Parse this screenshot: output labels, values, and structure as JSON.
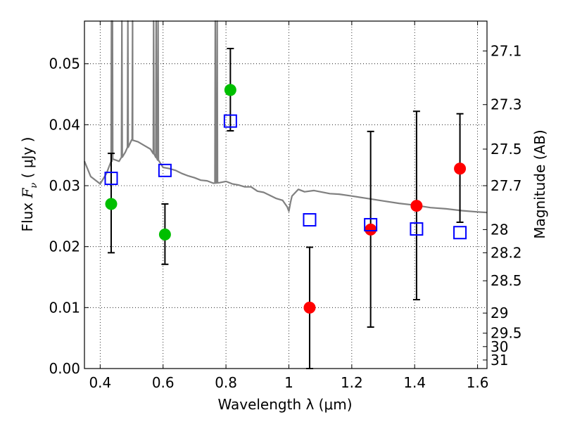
{
  "chart_data": {
    "type": "scatter",
    "xlabel": "Wavelength  λ (μm)",
    "ylabel_parts": [
      "Flux  ",
      "F",
      "ν",
      "  (  μJy  )"
    ],
    "y2label": "Magnitude (AB)",
    "xlim": [
      0.35,
      1.63
    ],
    "ylim": [
      0.0,
      0.057
    ],
    "grid": true,
    "x_ticks": [
      0.4,
      0.6,
      0.8,
      1.0,
      1.2,
      1.4,
      1.6
    ],
    "x_tick_labels": [
      "0.4",
      "0.6",
      "0.8",
      "1",
      "1.2",
      "1.4",
      "1.6"
    ],
    "y_ticks": [
      0.0,
      0.01,
      0.02,
      0.03,
      0.04,
      0.05
    ],
    "y_tick_labels": [
      "0.00",
      "0.01",
      "0.02",
      "0.03",
      "0.04",
      "0.05"
    ],
    "y2_ticks": [
      {
        "label": "27.1",
        "flux": 0.0521
      },
      {
        "label": "27.3",
        "flux": 0.0433
      },
      {
        "label": "27.5",
        "flux": 0.036
      },
      {
        "label": "27.7",
        "flux": 0.03
      },
      {
        "label": "28",
        "flux": 0.0228
      },
      {
        "label": "28.2",
        "flux": 0.019
      },
      {
        "label": "28.5",
        "flux": 0.0144
      },
      {
        "label": "29",
        "flux": 0.0091
      },
      {
        "label": "29.5",
        "flux": 0.0058
      },
      {
        "label": "30",
        "flux": 0.0036
      },
      {
        "label": "31",
        "flux": 0.0014
      }
    ],
    "series": [
      {
        "marker": "circle",
        "color": "#00bf00",
        "points": [
          {
            "x": 0.435,
            "y": 0.027,
            "ylo": 0.019,
            "yhi": 0.0353
          },
          {
            "x": 0.606,
            "y": 0.022,
            "ylo": 0.0171,
            "yhi": 0.027
          },
          {
            "x": 0.814,
            "y": 0.0457,
            "ylo": 0.039,
            "yhi": 0.0525
          }
        ]
      },
      {
        "marker": "circle",
        "color": "#ff0000",
        "points": [
          {
            "x": 1.066,
            "y": 0.01,
            "ylo": 0.0,
            "yhi": 0.0199
          },
          {
            "x": 1.26,
            "y": 0.0228,
            "ylo": 0.0068,
            "yhi": 0.0389
          },
          {
            "x": 1.406,
            "y": 0.0267,
            "ylo": 0.0113,
            "yhi": 0.0422
          },
          {
            "x": 1.544,
            "y": 0.0328,
            "ylo": 0.024,
            "yhi": 0.0418
          }
        ]
      },
      {
        "marker": "open-square",
        "color": "#0000ff",
        "points": [
          {
            "x": 0.435,
            "y": 0.0312
          },
          {
            "x": 0.606,
            "y": 0.0325
          },
          {
            "x": 0.814,
            "y": 0.0406
          },
          {
            "x": 1.066,
            "y": 0.0244
          },
          {
            "x": 1.26,
            "y": 0.0236
          },
          {
            "x": 1.406,
            "y": 0.0229
          },
          {
            "x": 1.544,
            "y": 0.0223
          }
        ]
      }
    ],
    "model_spectrum": {
      "color": "#808080",
      "continuum": [
        [
          0.35,
          0.034
        ],
        [
          0.37,
          0.0315
        ],
        [
          0.4,
          0.0303
        ],
        [
          0.42,
          0.032
        ],
        [
          0.44,
          0.0345
        ],
        [
          0.46,
          0.034
        ],
        [
          0.48,
          0.0355
        ],
        [
          0.5,
          0.0375
        ],
        [
          0.52,
          0.0372
        ],
        [
          0.54,
          0.0366
        ],
        [
          0.56,
          0.036
        ],
        [
          0.58,
          0.0345
        ],
        [
          0.6,
          0.033
        ],
        [
          0.62,
          0.0328
        ],
        [
          0.64,
          0.0325
        ],
        [
          0.66,
          0.032
        ],
        [
          0.68,
          0.0316
        ],
        [
          0.7,
          0.0313
        ],
        [
          0.72,
          0.0309
        ],
        [
          0.74,
          0.0308
        ],
        [
          0.76,
          0.0304
        ],
        [
          0.78,
          0.0305
        ],
        [
          0.8,
          0.0307
        ],
        [
          0.82,
          0.0303
        ],
        [
          0.84,
          0.0301
        ],
        [
          0.86,
          0.0298
        ],
        [
          0.88,
          0.0298
        ],
        [
          0.9,
          0.0291
        ],
        [
          0.92,
          0.0289
        ],
        [
          0.94,
          0.0284
        ],
        [
          0.96,
          0.0279
        ],
        [
          0.98,
          0.0276
        ],
        [
          0.995,
          0.0265
        ],
        [
          1.0,
          0.0258
        ],
        [
          1.005,
          0.0272
        ],
        [
          1.01,
          0.0283
        ],
        [
          1.03,
          0.0294
        ],
        [
          1.05,
          0.029
        ],
        [
          1.08,
          0.0292
        ],
        [
          1.1,
          0.029
        ],
        [
          1.13,
          0.0287
        ],
        [
          1.16,
          0.0286
        ],
        [
          1.2,
          0.0283
        ],
        [
          1.25,
          0.0279
        ],
        [
          1.3,
          0.0275
        ],
        [
          1.35,
          0.0271
        ],
        [
          1.4,
          0.0268
        ],
        [
          1.45,
          0.0264
        ],
        [
          1.5,
          0.0262
        ],
        [
          1.55,
          0.0259
        ],
        [
          1.6,
          0.0257
        ],
        [
          1.63,
          0.0256
        ]
      ],
      "emission_lines": [
        {
          "x": 0.436,
          "peak": 0.057
        },
        {
          "x": 0.439,
          "peak": 0.057
        },
        {
          "x": 0.469,
          "peak": 0.057
        },
        {
          "x": 0.488,
          "peak": 0.057
        },
        {
          "x": 0.502,
          "peak": 0.0405
        },
        {
          "x": 0.503,
          "peak": 0.057
        },
        {
          "x": 0.57,
          "peak": 0.057
        },
        {
          "x": 0.578,
          "peak": 0.057
        },
        {
          "x": 0.584,
          "peak": 0.057
        },
        {
          "x": 0.766,
          "peak": 0.057
        },
        {
          "x": 0.772,
          "peak": 0.057
        }
      ]
    }
  }
}
